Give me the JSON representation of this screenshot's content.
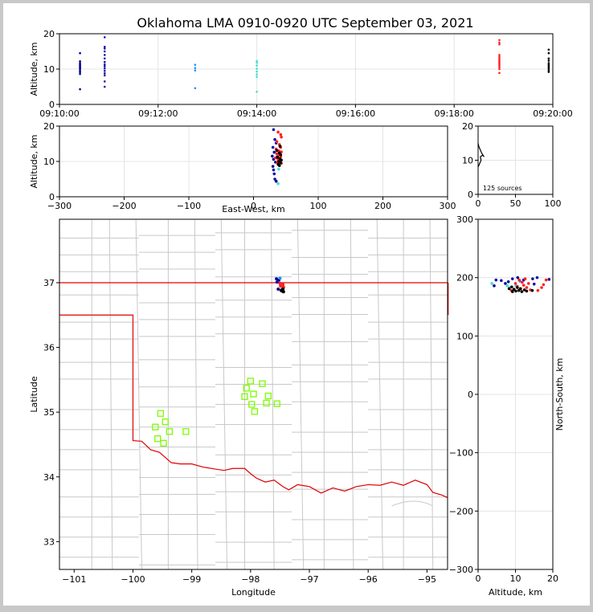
{
  "title": "Oklahoma LMA 0910-0920 UTC September 03, 2021",
  "colors": {
    "background": "#ffffff",
    "border": "#c8c8c8",
    "state_line": "#e00000",
    "county_line": "#c8c8c8",
    "lma_station": "#7cfc00"
  },
  "chart_data": [
    {
      "panel": "time-altitude",
      "type": "scatter",
      "title": "",
      "xlabel": "",
      "ylabel": "Altitude, km",
      "xlim": [
        "09:10:00",
        "09:20:00"
      ],
      "xticks": [
        "09:10:00",
        "09:12:00",
        "09:14:00",
        "09:16:00",
        "09:18:00",
        "09:20:00"
      ],
      "ylim": [
        0,
        20
      ],
      "yticks": [
        "0",
        "10",
        "20"
      ],
      "grid": true,
      "color_scale": "time (dark blue → cyan → red → black)",
      "groups": [
        {
          "time": "09:10:25",
          "color": "#00008b",
          "altitudes_km": [
            4.3,
            8.6,
            9.1,
            9.5,
            10.0,
            10.3,
            10.6,
            11.0,
            11.3,
            11.7,
            12.2,
            14.5
          ]
        },
        {
          "time": "09:10:55",
          "color": "#1010a8",
          "altitudes_km": [
            5.0,
            6.5,
            8.2,
            8.8,
            9.5,
            10.2,
            10.8,
            11.3,
            12.0,
            13.0,
            14.0,
            15.0,
            15.8,
            16.3,
            19.0
          ]
        },
        {
          "time": "09:12:45",
          "color": "#1e90ff",
          "altitudes_km": [
            4.6,
            9.6,
            10.3,
            11.2
          ]
        },
        {
          "time": "09:14:00",
          "color": "#40e0d0",
          "altitudes_km": [
            3.6,
            7.8,
            8.5,
            9.3,
            10.1,
            11.0,
            11.8,
            12.3
          ]
        },
        {
          "time": "09:18:55",
          "color": "#ff2020",
          "altitudes_km": [
            8.9,
            10.0,
            10.5,
            11.0,
            11.4,
            11.8,
            12.2,
            12.6,
            13.0,
            13.5,
            14.0,
            17.0,
            17.5,
            18.2
          ]
        },
        {
          "time": "09:19:55",
          "color": "#000000",
          "altitudes_km": [
            9.2,
            9.6,
            10.1,
            10.5,
            10.9,
            11.3,
            11.7,
            12.4,
            13.0,
            14.5,
            15.5
          ]
        }
      ]
    },
    {
      "panel": "east-west-altitude",
      "type": "scatter",
      "xlabel": "East-West, km",
      "ylabel": "Altitude, km",
      "xlim": [
        -300,
        300
      ],
      "xticks": [
        "−300",
        "−200",
        "−100",
        "0",
        "100",
        "200",
        "300"
      ],
      "ylim": [
        0,
        20
      ],
      "yticks": [
        "0",
        "10",
        "20"
      ],
      "grid": true,
      "points": [
        {
          "x": 31,
          "y": 19.0,
          "c": "#1010a8"
        },
        {
          "x": 33,
          "y": 16.2,
          "c": "#1010a8"
        },
        {
          "x": 35,
          "y": 15.2,
          "c": "#1010a8"
        },
        {
          "x": 30,
          "y": 14.0,
          "c": "#1010a8"
        },
        {
          "x": 32,
          "y": 12.6,
          "c": "#00008b"
        },
        {
          "x": 29,
          "y": 11.5,
          "c": "#00008b"
        },
        {
          "x": 31,
          "y": 10.6,
          "c": "#00008b"
        },
        {
          "x": 34,
          "y": 9.8,
          "c": "#00008b"
        },
        {
          "x": 30,
          "y": 8.6,
          "c": "#00008b"
        },
        {
          "x": 31,
          "y": 7.6,
          "c": "#1010a8"
        },
        {
          "x": 32,
          "y": 6.5,
          "c": "#1010a8"
        },
        {
          "x": 33,
          "y": 5.0,
          "c": "#1010a8"
        },
        {
          "x": 35,
          "y": 4.4,
          "c": "#00008b"
        },
        {
          "x": 38,
          "y": 3.7,
          "c": "#40e0d0"
        },
        {
          "x": 39,
          "y": 7.8,
          "c": "#40e0d0"
        },
        {
          "x": 41,
          "y": 9.2,
          "c": "#40e0d0"
        },
        {
          "x": 37,
          "y": 11.5,
          "c": "#1e90ff"
        },
        {
          "x": 38,
          "y": 18.3,
          "c": "#ff2020"
        },
        {
          "x": 42,
          "y": 17.6,
          "c": "#ff2020"
        },
        {
          "x": 43,
          "y": 16.9,
          "c": "#ff2020"
        },
        {
          "x": 36,
          "y": 15.6,
          "c": "#ff2020"
        },
        {
          "x": 40,
          "y": 14.8,
          "c": "#ff2020"
        },
        {
          "x": 42,
          "y": 14.0,
          "c": "#ff2020"
        },
        {
          "x": 35,
          "y": 13.5,
          "c": "#ff2020"
        },
        {
          "x": 39,
          "y": 13.0,
          "c": "#ff2020"
        },
        {
          "x": 43,
          "y": 12.7,
          "c": "#ff2020"
        },
        {
          "x": 36,
          "y": 12.2,
          "c": "#ff2020"
        },
        {
          "x": 40,
          "y": 11.8,
          "c": "#ff2020"
        },
        {
          "x": 42,
          "y": 11.4,
          "c": "#ff2020"
        },
        {
          "x": 34,
          "y": 11.0,
          "c": "#ff2020"
        },
        {
          "x": 38,
          "y": 10.6,
          "c": "#ff2020"
        },
        {
          "x": 41,
          "y": 10.2,
          "c": "#ff2020"
        },
        {
          "x": 37,
          "y": 9.8,
          "c": "#ff2020"
        },
        {
          "x": 43,
          "y": 9.5,
          "c": "#ff2020"
        },
        {
          "x": 39,
          "y": 9.0,
          "c": "#ff2020"
        },
        {
          "x": 40,
          "y": 12.4,
          "c": "#000000"
        },
        {
          "x": 42,
          "y": 11.9,
          "c": "#000000"
        },
        {
          "x": 37,
          "y": 11.2,
          "c": "#000000"
        },
        {
          "x": 41,
          "y": 10.8,
          "c": "#000000"
        },
        {
          "x": 43,
          "y": 10.4,
          "c": "#000000"
        },
        {
          "x": 39,
          "y": 10.0,
          "c": "#000000"
        },
        {
          "x": 42,
          "y": 9.6,
          "c": "#000000"
        },
        {
          "x": 38,
          "y": 9.2,
          "c": "#000000"
        },
        {
          "x": 40,
          "y": 8.8,
          "c": "#000000"
        },
        {
          "x": 41,
          "y": 14.3,
          "c": "#000000"
        },
        {
          "x": 36,
          "y": 13.1,
          "c": "#000000"
        }
      ]
    },
    {
      "panel": "altitude-histogram",
      "type": "line",
      "xlim": [
        0,
        100
      ],
      "xticks": [
        "0",
        "50",
        "100"
      ],
      "ylim": [
        0,
        20
      ],
      "yticks": [
        "0",
        "10",
        "20"
      ],
      "annotation": "125 sources",
      "x": [
        0,
        2,
        4,
        3,
        6,
        8,
        5,
        3,
        1,
        0
      ],
      "y": [
        8,
        9,
        10,
        11,
        11.5,
        11,
        12,
        13,
        14,
        15
      ]
    },
    {
      "panel": "plan-view",
      "type": "scatter",
      "xlabel": "Longitude",
      "ylabel": "Latitude",
      "xlim": [
        -101.25,
        -94.65
      ],
      "ylim": [
        32.57,
        37.98
      ],
      "xticks": [
        "−101",
        "−100",
        "−99",
        "−98",
        "−97",
        "−96",
        "−95"
      ],
      "yticks": [
        "33",
        "34",
        "35",
        "36",
        "37"
      ],
      "lma_stations": [
        {
          "lon": -99.62,
          "lat": 34.77
        },
        {
          "lon": -99.53,
          "lat": 34.98
        },
        {
          "lon": -99.45,
          "lat": 34.85
        },
        {
          "lon": -99.38,
          "lat": 34.7
        },
        {
          "lon": -99.48,
          "lat": 34.52
        },
        {
          "lon": -99.58,
          "lat": 34.59
        },
        {
          "lon": -99.1,
          "lat": 34.7
        },
        {
          "lon": -98.0,
          "lat": 35.48
        },
        {
          "lon": -98.07,
          "lat": 35.37
        },
        {
          "lon": -98.1,
          "lat": 35.24
        },
        {
          "lon": -97.95,
          "lat": 35.28
        },
        {
          "lon": -97.8,
          "lat": 35.44
        },
        {
          "lon": -97.7,
          "lat": 35.25
        },
        {
          "lon": -97.73,
          "lat": 35.14
        },
        {
          "lon": -97.55,
          "lat": 35.13
        },
        {
          "lon": -97.98,
          "lat": 35.12
        },
        {
          "lon": -97.93,
          "lat": 35.01
        }
      ],
      "sources": [
        {
          "lon": -97.56,
          "lat": 37.06,
          "c": "#1010a8"
        },
        {
          "lon": -97.52,
          "lat": 37.04,
          "c": "#00008b"
        },
        {
          "lon": -97.55,
          "lat": 37.01,
          "c": "#1010a8"
        },
        {
          "lon": -97.5,
          "lat": 37.07,
          "c": "#1e90ff"
        },
        {
          "lon": -97.53,
          "lat": 36.9,
          "c": "#00008b"
        },
        {
          "lon": -97.46,
          "lat": 36.92,
          "c": "#40e0d0"
        },
        {
          "lon": -97.49,
          "lat": 36.95,
          "c": "#ff2020"
        },
        {
          "lon": -97.45,
          "lat": 36.97,
          "c": "#ff2020"
        },
        {
          "lon": -97.47,
          "lat": 36.89,
          "c": "#ff2020"
        },
        {
          "lon": -97.44,
          "lat": 36.93,
          "c": "#ff2020"
        },
        {
          "lon": -97.5,
          "lat": 36.99,
          "c": "#ff2020"
        },
        {
          "lon": -97.46,
          "lat": 36.87,
          "c": "#000000"
        },
        {
          "lon": -97.44,
          "lat": 36.86,
          "c": "#000000"
        },
        {
          "lon": -97.48,
          "lat": 36.88,
          "c": "#000000"
        },
        {
          "lon": -97.45,
          "lat": 36.9,
          "c": "#000000"
        }
      ]
    },
    {
      "panel": "altitude-north-south",
      "type": "scatter",
      "xlabel": "Altitude, km",
      "ylabel": "North-South, km",
      "xlim": [
        0,
        20
      ],
      "xticks": [
        "0",
        "10",
        "20"
      ],
      "ylim": [
        -300,
        300
      ],
      "yticks": [
        "−300",
        "−200",
        "−100",
        "0",
        "100",
        "200",
        "300"
      ],
      "points": [
        {
          "x": 4.3,
          "y": 186,
          "c": "#00008b"
        },
        {
          "x": 4.8,
          "y": 196,
          "c": "#1010a8"
        },
        {
          "x": 6.2,
          "y": 195,
          "c": "#1010a8"
        },
        {
          "x": 7.3,
          "y": 190,
          "c": "#00008b"
        },
        {
          "x": 8.1,
          "y": 193,
          "c": "#00008b"
        },
        {
          "x": 9.2,
          "y": 198,
          "c": "#1010a8"
        },
        {
          "x": 10.6,
          "y": 200,
          "c": "#00008b"
        },
        {
          "x": 12.2,
          "y": 196,
          "c": "#1010a8"
        },
        {
          "x": 14.6,
          "y": 198,
          "c": "#1010a8"
        },
        {
          "x": 15.8,
          "y": 200,
          "c": "#1010a8"
        },
        {
          "x": 19.0,
          "y": 197,
          "c": "#1010a8"
        },
        {
          "x": 15.0,
          "y": 189,
          "c": "#1010a8"
        },
        {
          "x": 3.7,
          "y": 190,
          "c": "#40e0d0"
        },
        {
          "x": 7.8,
          "y": 186,
          "c": "#40e0d0"
        },
        {
          "x": 8.5,
          "y": 183,
          "c": "#40e0d0"
        },
        {
          "x": 11.2,
          "y": 194,
          "c": "#1e90ff"
        },
        {
          "x": 10.1,
          "y": 186,
          "c": "#40e0d0"
        },
        {
          "x": 8.9,
          "y": 178,
          "c": "#ff2020"
        },
        {
          "x": 10.0,
          "y": 190,
          "c": "#ff2020"
        },
        {
          "x": 10.5,
          "y": 185,
          "c": "#ff2020"
        },
        {
          "x": 11.0,
          "y": 196,
          "c": "#ff2020"
        },
        {
          "x": 11.4,
          "y": 181,
          "c": "#ff2020"
        },
        {
          "x": 11.8,
          "y": 192,
          "c": "#ff2020"
        },
        {
          "x": 12.2,
          "y": 187,
          "c": "#ff2020"
        },
        {
          "x": 12.6,
          "y": 198,
          "c": "#ff2020"
        },
        {
          "x": 13.0,
          "y": 183,
          "c": "#ff2020"
        },
        {
          "x": 13.5,
          "y": 190,
          "c": "#ff2020"
        },
        {
          "x": 14.0,
          "y": 179,
          "c": "#ff2020"
        },
        {
          "x": 17.0,
          "y": 183,
          "c": "#ff2020"
        },
        {
          "x": 17.5,
          "y": 188,
          "c": "#ff2020"
        },
        {
          "x": 18.2,
          "y": 196,
          "c": "#ff2020"
        },
        {
          "x": 16.0,
          "y": 178,
          "c": "#ff2020"
        },
        {
          "x": 9.2,
          "y": 176,
          "c": "#000000"
        },
        {
          "x": 9.6,
          "y": 180,
          "c": "#000000"
        },
        {
          "x": 10.1,
          "y": 177,
          "c": "#000000"
        },
        {
          "x": 10.5,
          "y": 183,
          "c": "#000000"
        },
        {
          "x": 10.9,
          "y": 178,
          "c": "#000000"
        },
        {
          "x": 11.3,
          "y": 181,
          "c": "#000000"
        },
        {
          "x": 11.7,
          "y": 176,
          "c": "#000000"
        },
        {
          "x": 12.4,
          "y": 179,
          "c": "#000000"
        },
        {
          "x": 13.0,
          "y": 177,
          "c": "#000000"
        },
        {
          "x": 14.5,
          "y": 178,
          "c": "#000000"
        },
        {
          "x": 8.3,
          "y": 181,
          "c": "#000000"
        },
        {
          "x": 9.0,
          "y": 184,
          "c": "#000000"
        }
      ]
    }
  ]
}
